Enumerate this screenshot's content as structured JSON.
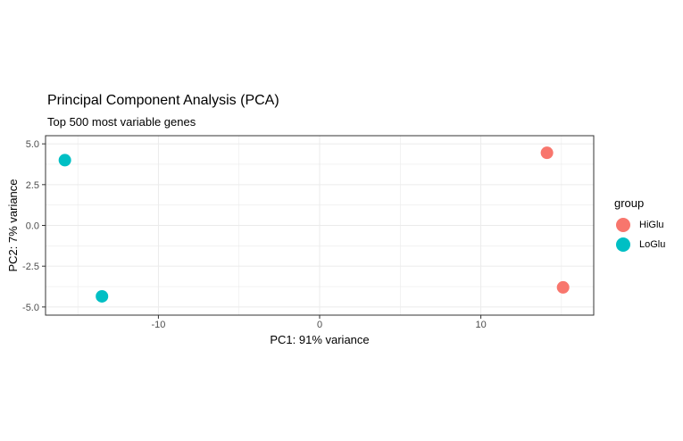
{
  "chart_data": {
    "type": "scatter",
    "title": "Principal Component Analysis (PCA)",
    "subtitle": "Top 500 most variable genes",
    "xlabel": "PC1: 91% variance",
    "ylabel": "PC2: 7% variance",
    "xlim": [
      -17,
      17
    ],
    "ylim": [
      -5.5,
      5.5
    ],
    "x_ticks": [
      -10,
      0,
      10
    ],
    "x_tick_labels": [
      "-10",
      "0",
      "10"
    ],
    "y_ticks": [
      -5,
      -2.5,
      0,
      2.5,
      5
    ],
    "y_tick_labels": [
      "-5.0",
      "-2.5",
      "0.0",
      "2.5",
      "5.0"
    ],
    "grid": true,
    "legend_title": "group",
    "legend_position": "right",
    "series": [
      {
        "name": "HiGlu",
        "color": "#F8766D",
        "points": [
          [
            14.1,
            4.45
          ],
          [
            15.1,
            -3.8
          ]
        ]
      },
      {
        "name": "LoGlu",
        "color": "#00BFC4",
        "points": [
          [
            -15.8,
            4.0
          ],
          [
            -13.5,
            -4.35
          ]
        ]
      }
    ]
  }
}
